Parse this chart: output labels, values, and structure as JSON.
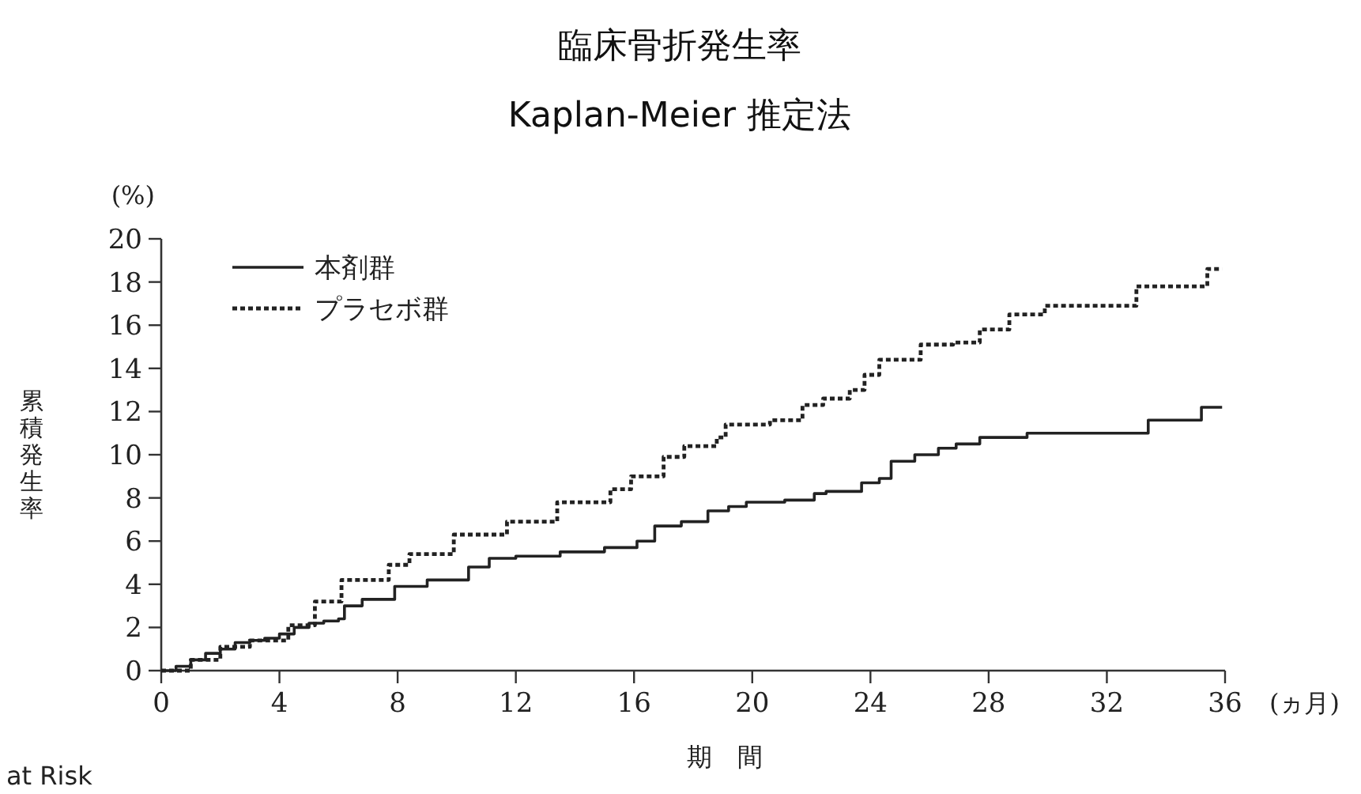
{
  "chart_data": {
    "type": "step",
    "title": "臨床骨折発生率",
    "subtitle": "Kaplan-Meier 推定法",
    "xlabel": "期　間",
    "ylabel": "累積発生率",
    "annotations": [
      "(%)",
      "(ヵ月)",
      "at Risk"
    ],
    "xlim": [
      0,
      36
    ],
    "xticks": [
      0,
      4,
      8,
      12,
      16,
      20,
      24,
      28,
      32,
      36
    ],
    "ylim": [
      0,
      20
    ],
    "yticks": [
      0,
      2,
      4,
      6,
      8,
      10,
      12,
      14,
      16,
      18,
      20
    ],
    "grid": false,
    "legend": "top left",
    "marker": "none",
    "series": [
      {
        "name": "本剤群",
        "color": "#222222",
        "line_style": "solid",
        "x": [
          0,
          0.5,
          1,
          1.5,
          2,
          2.5,
          3,
          3.5,
          4,
          4.5,
          5,
          5.5,
          6,
          6.2,
          6.8,
          7.9,
          9,
          10.4,
          11.1,
          12,
          13.5,
          15,
          16.1,
          16.7,
          17.6,
          18.5,
          19.2,
          19.8,
          21.1,
          22.1,
          22.5,
          23.7,
          24.3,
          24.7,
          25.5,
          26.3,
          26.9,
          27.7,
          29.3,
          33.4,
          35.2,
          35.9
        ],
        "values": [
          0,
          0.2,
          0.5,
          0.8,
          1.0,
          1.3,
          1.4,
          1.5,
          1.7,
          2.0,
          2.2,
          2.3,
          2.4,
          3.0,
          3.3,
          3.9,
          4.2,
          4.8,
          5.2,
          5.3,
          5.5,
          5.7,
          6.0,
          6.7,
          6.9,
          7.4,
          7.6,
          7.8,
          7.9,
          8.2,
          8.3,
          8.7,
          8.9,
          9.7,
          10.0,
          10.3,
          10.5,
          10.8,
          11.0,
          11.6,
          12.2,
          12.2
        ]
      },
      {
        "name": "プラセボ群",
        "color": "#222222",
        "line_style": "dotted",
        "x": [
          0,
          1,
          2,
          3,
          4.3,
          5.2,
          6.1,
          7.7,
          8.4,
          9.9,
          11.7,
          13.4,
          15.2,
          15.9,
          17.0,
          17.7,
          18.8,
          19.1,
          20.6,
          21.7,
          22.4,
          23.3,
          23.8,
          24.3,
          25.7,
          26.8,
          27.7,
          28.7,
          29.9,
          33.0,
          35.4,
          35.9
        ],
        "values": [
          0,
          0.5,
          1.1,
          1.4,
          2.1,
          3.2,
          4.2,
          4.9,
          5.4,
          6.3,
          6.9,
          7.8,
          8.4,
          9.0,
          9.9,
          10.4,
          10.8,
          11.4,
          11.6,
          12.3,
          12.6,
          13.0,
          13.7,
          14.4,
          15.1,
          15.2,
          15.8,
          16.5,
          16.9,
          17.8,
          18.6,
          18.6
        ]
      }
    ]
  }
}
